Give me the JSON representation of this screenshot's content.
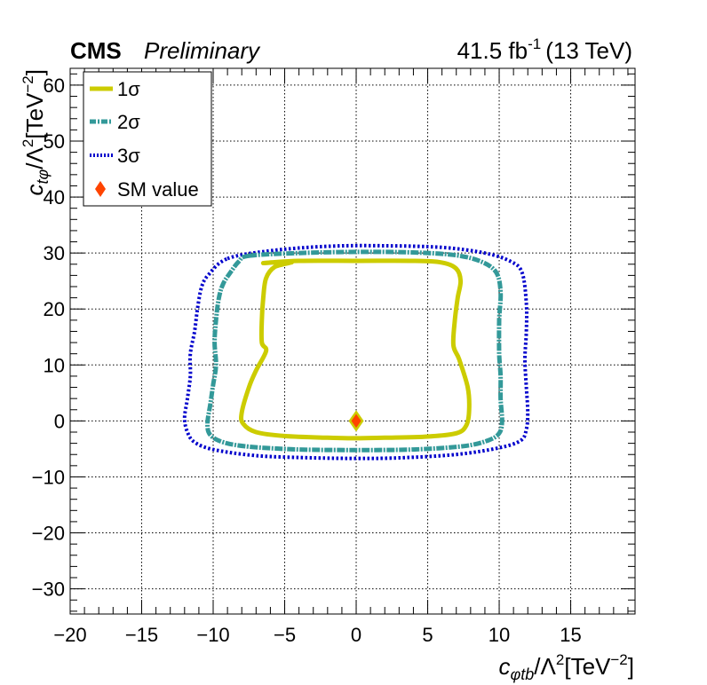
{
  "header": {
    "experiment": "CMS",
    "status": "Preliminary",
    "lumi_value": "41.5 fb",
    "lumi_exp": "-1",
    "energy": "(13 TeV)"
  },
  "axes": {
    "x_label_main": "c",
    "x_label_sub": "φtb",
    "x_label_rest": "/Λ",
    "x_label_sup": "2",
    "x_label_unit": "[TeV",
    "x_label_unit_exp": "−2",
    "x_label_close": "]",
    "y_label_main": "c",
    "y_label_sub": "tφ",
    "y_label_rest": "/Λ",
    "y_label_sup": "2",
    "y_label_unit": "[TeV",
    "y_label_unit_exp": "−2",
    "y_label_close": "]"
  },
  "legend": {
    "items": [
      {
        "label": "1σ",
        "color": "#cccc00",
        "style": "solid"
      },
      {
        "label": "2σ",
        "color": "#339999",
        "style": "dashdot"
      },
      {
        "label": "3σ",
        "color": "#0000cc",
        "style": "dotted"
      },
      {
        "label": "SM value",
        "color": "#ff4400",
        "style": "marker"
      }
    ]
  },
  "chart_data": {
    "type": "line",
    "title": "",
    "xlabel": "cφtb/Λ²[TeV⁻²]",
    "ylabel": "ctφ/Λ²[TeV⁻²]",
    "xlim": [
      -20,
      19.5
    ],
    "ylim": [
      -34.5,
      63
    ],
    "x_ticks": [
      -20,
      -15,
      -10,
      -5,
      0,
      5,
      10,
      15
    ],
    "x_tick_labels": [
      "−20",
      "−15",
      "−10",
      "−5",
      "0",
      "5",
      "10",
      "15"
    ],
    "y_ticks": [
      -30,
      -20,
      -10,
      0,
      10,
      20,
      30,
      40,
      50,
      60
    ],
    "y_tick_labels": [
      "−30",
      "−20",
      "−10",
      "0",
      "10",
      "20",
      "30",
      "40",
      "50",
      "60"
    ],
    "grid": true,
    "legend_position": "top-left",
    "series": [
      {
        "name": "1σ",
        "color": "#cccc00",
        "points": [
          [
            -6.5,
            28.2
          ],
          [
            -4,
            28.6
          ],
          [
            0,
            28.6
          ],
          [
            4,
            28.6
          ],
          [
            6,
            28.3
          ],
          [
            7,
            27.2
          ],
          [
            7.3,
            25
          ],
          [
            7.1,
            22
          ],
          [
            6.9,
            18
          ],
          [
            6.8,
            13.5
          ],
          [
            7.2,
            11
          ],
          [
            7.8,
            6
          ],
          [
            7.9,
            2
          ],
          [
            7.7,
            -0.8
          ],
          [
            7,
            -2.2
          ],
          [
            5,
            -2.8
          ],
          [
            2,
            -3
          ],
          [
            0,
            -3.1
          ],
          [
            -2,
            -3
          ],
          [
            -5,
            -2.7
          ],
          [
            -7,
            -2
          ],
          [
            -7.9,
            -0.5
          ],
          [
            -8,
            1.5
          ],
          [
            -7.5,
            6
          ],
          [
            -7,
            9
          ],
          [
            -6.3,
            12.5
          ],
          [
            -6.6,
            14
          ],
          [
            -6.6,
            18
          ],
          [
            -6.5,
            22
          ],
          [
            -6.3,
            25.5
          ],
          [
            -5.7,
            27.5
          ],
          [
            -4.5,
            28.4
          ]
        ]
      },
      {
        "name": "2σ",
        "color": "#339999",
        "points": [
          [
            -7.5,
            29.5
          ],
          [
            -4,
            30
          ],
          [
            0,
            30.2
          ],
          [
            4,
            30.1
          ],
          [
            7,
            29.6
          ],
          [
            8.8,
            28.4
          ],
          [
            9.8,
            26.5
          ],
          [
            10.1,
            23
          ],
          [
            10,
            18
          ],
          [
            10,
            12
          ],
          [
            10.1,
            8
          ],
          [
            10.1,
            4
          ],
          [
            10.2,
            0
          ],
          [
            10,
            -2.2
          ],
          [
            9.2,
            -3.5
          ],
          [
            7.5,
            -4.5
          ],
          [
            4,
            -5.1
          ],
          [
            0,
            -5.2
          ],
          [
            -4,
            -5.1
          ],
          [
            -7.5,
            -4.6
          ],
          [
            -9.3,
            -3.8
          ],
          [
            -10.2,
            -2.5
          ],
          [
            -10.4,
            -0.5
          ],
          [
            -10.2,
            3
          ],
          [
            -10,
            6.5
          ],
          [
            -9.8,
            10
          ],
          [
            -9.9,
            14
          ],
          [
            -9.8,
            18
          ],
          [
            -9.6,
            22
          ],
          [
            -9.3,
            24.5
          ],
          [
            -8.8,
            26.5
          ],
          [
            -8.2,
            28.5
          ]
        ]
      },
      {
        "name": "3σ",
        "color": "#0000cc",
        "points": [
          [
            -9,
            29
          ],
          [
            -6,
            30.4
          ],
          [
            -2,
            31.2
          ],
          [
            2,
            31.3
          ],
          [
            6,
            31
          ],
          [
            9,
            30
          ],
          [
            10.8,
            28.5
          ],
          [
            11.6,
            26.5
          ],
          [
            11.9,
            21
          ],
          [
            11.9,
            16
          ],
          [
            11.8,
            11
          ],
          [
            11.9,
            6
          ],
          [
            12,
            1.5
          ],
          [
            11.9,
            -1.5
          ],
          [
            11.5,
            -3.5
          ],
          [
            10,
            -4.8
          ],
          [
            7,
            -6
          ],
          [
            3,
            -6.6
          ],
          [
            0,
            -6.7
          ],
          [
            -3,
            -6.6
          ],
          [
            -7,
            -6.2
          ],
          [
            -10,
            -5.1
          ],
          [
            -11.3,
            -3.8
          ],
          [
            -11.8,
            -2
          ],
          [
            -12,
            0.5
          ],
          [
            -11.8,
            4
          ],
          [
            -11.6,
            8
          ],
          [
            -11.6,
            12
          ],
          [
            -11.3,
            16
          ],
          [
            -11.1,
            20
          ],
          [
            -10.8,
            24
          ],
          [
            -10.3,
            26.2
          ]
        ]
      }
    ],
    "sm_value": {
      "name": "SM value",
      "x": 0,
      "y": 0,
      "color": "#ff4400",
      "edge_color": "#cccc00"
    }
  }
}
